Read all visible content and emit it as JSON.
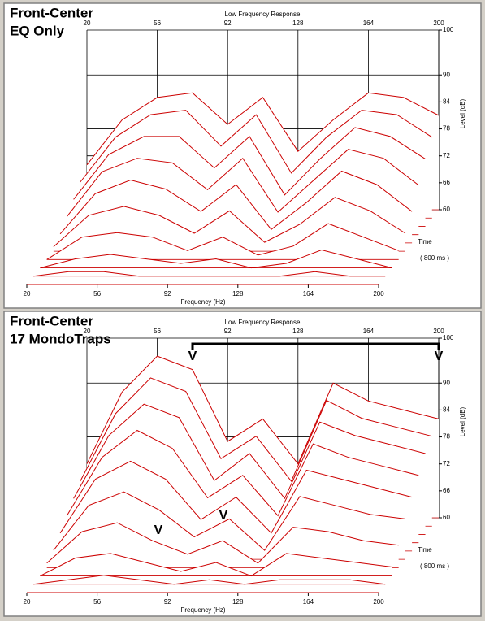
{
  "chart_data": [
    {
      "type": "waterfall",
      "title": "Front-Center",
      "subtitle": "EQ Only",
      "top_label": "Low Frequency Response",
      "xlabel": "Frequency (Hz)",
      "ylabel": "Level (dB)",
      "time_label": [
        "Time",
        "( 800 ms )"
      ],
      "x": [
        20,
        38,
        56,
        74,
        92,
        110,
        128,
        146,
        164,
        182,
        200
      ],
      "xlim": [
        20,
        200
      ],
      "xticks": [
        20,
        56,
        92,
        128,
        164,
        200
      ],
      "ylim": [
        60,
        100
      ],
      "yticks": [
        60,
        66,
        72,
        78,
        84,
        90,
        100
      ],
      "grid": true,
      "color": "#cc0000",
      "series": [
        {
          "values": [
            70,
            80,
            85,
            86,
            79,
            85,
            73,
            80,
            86,
            85,
            81
          ]
        },
        {
          "values": [
            68,
            78,
            83,
            84,
            76,
            83,
            70,
            78,
            84,
            83,
            78
          ]
        },
        {
          "values": [
            66,
            76,
            80,
            80,
            73,
            80,
            67,
            75,
            82,
            80,
            75
          ]
        },
        {
          "values": [
            64,
            74,
            77,
            76,
            70,
            77,
            65,
            72,
            79,
            77,
            71
          ]
        },
        {
          "values": [
            62,
            71,
            74,
            72,
            67,
            73,
            63,
            69,
            76,
            73,
            67
          ]
        },
        {
          "values": [
            61,
            68,
            70,
            68,
            64,
            69,
            62,
            66,
            72,
            69,
            64
          ]
        },
        {
          "values": [
            60,
            65,
            66,
            65,
            62,
            65,
            61,
            63,
            68,
            65,
            62
          ]
        },
        {
          "values": [
            60,
            62,
            63,
            62,
            61,
            62,
            60,
            61,
            64,
            62,
            60
          ]
        },
        {
          "values": [
            60,
            61,
            61,
            60,
            60,
            60,
            60,
            60,
            61,
            60,
            60
          ]
        },
        {
          "values": [
            60,
            60,
            60,
            60,
            60,
            60,
            60,
            60,
            60,
            60,
            60
          ]
        }
      ]
    },
    {
      "type": "waterfall",
      "title": "Front-Center",
      "subtitle": "17 MondoTraps",
      "top_label": "Low Frequency Response",
      "xlabel": "Frequency (Hz)",
      "ylabel": "Level (dB)",
      "time_label": [
        "Time",
        "( 800 ms )"
      ],
      "x": [
        20,
        38,
        56,
        74,
        92,
        110,
        128,
        146,
        164,
        182,
        200
      ],
      "xlim": [
        20,
        200
      ],
      "xticks": [
        20,
        56,
        92,
        128,
        164,
        200
      ],
      "ylim": [
        60,
        100
      ],
      "yticks": [
        60,
        66,
        72,
        78,
        84,
        90,
        100
      ],
      "grid": true,
      "color": "#cc0000",
      "annotations": [
        "V",
        "V",
        "V",
        "V"
      ],
      "series": [
        {
          "values": [
            72,
            88,
            96,
            93,
            77,
            82,
            72,
            90,
            86,
            84,
            82
          ]
        },
        {
          "values": [
            70,
            85,
            93,
            90,
            75,
            80,
            70,
            88,
            84,
            82,
            80
          ]
        },
        {
          "values": [
            68,
            82,
            89,
            86,
            72,
            78,
            68,
            85,
            82,
            80,
            78
          ]
        },
        {
          "values": [
            66,
            79,
            85,
            81,
            70,
            75,
            66,
            82,
            79,
            77,
            75
          ]
        },
        {
          "values": [
            64,
            76,
            80,
            76,
            67,
            72,
            64,
            78,
            76,
            74,
            72
          ]
        },
        {
          "values": [
            62,
            72,
            75,
            71,
            65,
            69,
            62,
            74,
            72,
            70,
            69
          ]
        },
        {
          "values": [
            61,
            68,
            70,
            66,
            63,
            66,
            61,
            69,
            68,
            66,
            65
          ]
        },
        {
          "values": [
            60,
            64,
            65,
            63,
            61,
            63,
            60,
            65,
            64,
            63,
            62
          ]
        },
        {
          "values": [
            60,
            61,
            62,
            61,
            60,
            61,
            60,
            61,
            61,
            61,
            60
          ]
        },
        {
          "values": [
            60,
            60,
            60,
            60,
            60,
            60,
            60,
            60,
            60,
            60,
            60
          ]
        }
      ]
    }
  ]
}
